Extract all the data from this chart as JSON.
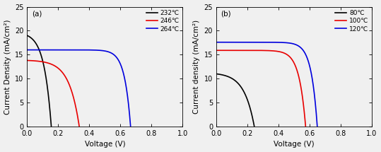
{
  "panel_a": {
    "label": "(a)",
    "ylabel": "Current Density (mA/cm²)",
    "xlabel": "Voltage (V)",
    "xlim": [
      0,
      1.0
    ],
    "ylim": [
      0,
      25
    ],
    "yticks": [
      0,
      5,
      10,
      15,
      20,
      25
    ],
    "xticks": [
      0.0,
      0.2,
      0.4,
      0.6,
      0.8,
      1.0
    ],
    "curves": [
      {
        "label": "232℃",
        "color": "#000000",
        "jsc": 19.0,
        "voc": 0.155,
        "ideality": 1.8
      },
      {
        "label": "246℃",
        "color": "#e80000",
        "jsc": 13.8,
        "voc": 0.335,
        "ideality": 2.5
      },
      {
        "label": "264℃",
        "color": "#0000dd",
        "jsc": 16.0,
        "voc": 0.665,
        "ideality": 1.5
      }
    ]
  },
  "panel_b": {
    "label": "(b)",
    "ylabel": "Current density (mA/cm²)",
    "xlabel": "Voltage (V)",
    "xlim": [
      0,
      1.0
    ],
    "ylim": [
      0,
      25
    ],
    "yticks": [
      0,
      5,
      10,
      15,
      20,
      25
    ],
    "xticks": [
      0.0,
      0.2,
      0.4,
      0.6,
      0.8,
      1.0
    ],
    "curves": [
      {
        "label": "80℃",
        "color": "#000000",
        "jsc": 11.0,
        "voc": 0.245,
        "ideality": 2.5
      },
      {
        "label": "100℃",
        "color": "#e80000",
        "jsc": 15.9,
        "voc": 0.575,
        "ideality": 1.6
      },
      {
        "label": "120℃",
        "color": "#0000dd",
        "jsc": 17.6,
        "voc": 0.65,
        "ideality": 1.5
      }
    ]
  },
  "figsize": [
    5.39,
    2.15
  ],
  "dpi": 100,
  "tick_fontsize": 7,
  "label_fontsize": 7.5,
  "legend_fontsize": 6.5,
  "bg_color": "#f0f0f0",
  "linewidth": 1.2
}
